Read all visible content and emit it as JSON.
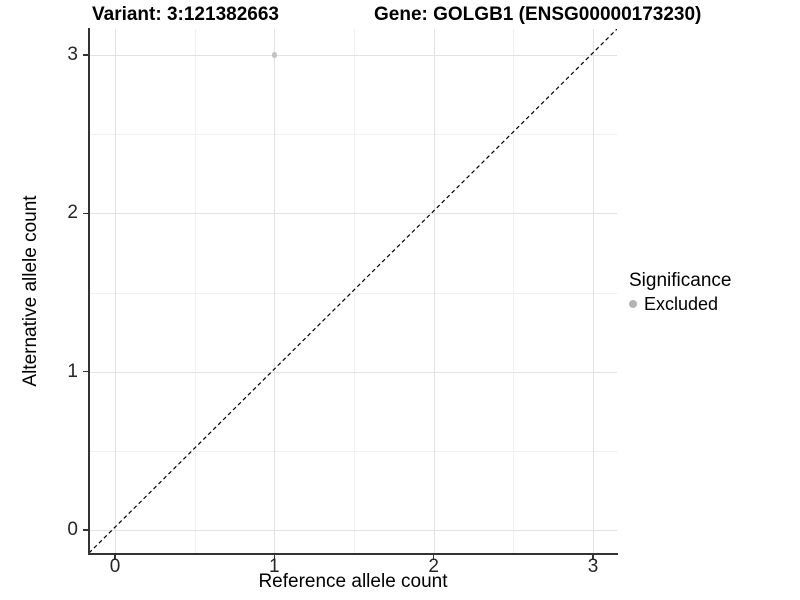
{
  "title": {
    "variant": "Variant: 3:121382663",
    "gene": "Gene: GOLGB1 (ENSG00000173230)"
  },
  "axes": {
    "x": {
      "label": "Reference allele count"
    },
    "y": {
      "label": "Alternative allele count"
    }
  },
  "legend": {
    "title": "Significance",
    "items": [
      {
        "label": "Excluded",
        "color": "#b3b3b3"
      }
    ]
  },
  "chart_data": {
    "type": "scatter",
    "titles": [
      "Variant: 3:121382663",
      "Gene: GOLGB1 (ENSG00000173230)"
    ],
    "xlabel": "Reference allele count",
    "ylabel": "Alternative allele count",
    "xlim": [
      -0.17,
      3.17
    ],
    "ylim": [
      -0.17,
      3.17
    ],
    "x_ticks": [
      0,
      1,
      2,
      3
    ],
    "y_ticks": [
      0,
      1,
      2,
      3
    ],
    "x_minor_ticks": [
      0.5,
      1.5,
      2.5
    ],
    "y_minor_ticks": [
      0.5,
      1.5,
      2.5
    ],
    "grid": true,
    "legend_position": "right",
    "series": [
      {
        "name": "Excluded",
        "color": "#c2c2c2",
        "points": [
          {
            "x": 1,
            "y": 3
          }
        ]
      }
    ],
    "reference_line": {
      "equation": "y = x",
      "style": "dashed",
      "color": "#000000"
    },
    "colors": {
      "major_grid": "#e2e2e2",
      "minor_grid": "#f0f0f0",
      "axis_line": "#333333"
    }
  }
}
